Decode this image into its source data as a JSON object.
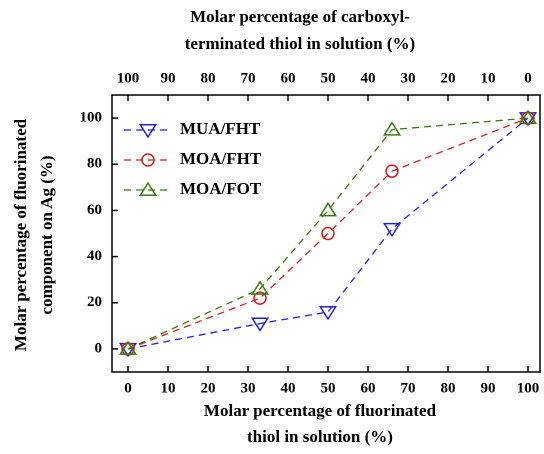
{
  "chart_data": {
    "type": "line",
    "x2label": [
      "Molar percentage of carboxyl-",
      "terminated thiol in solution (%)"
    ],
    "xlabel": [
      "Molar percentage of fluorinated",
      "thiol  in solution (%)"
    ],
    "ylabel": [
      "Molar percentage of fluorinated",
      "component on Ag (%)"
    ],
    "x": [
      0,
      33,
      50,
      66,
      100
    ],
    "series": [
      {
        "name": "MUA/FHT",
        "color": "#2020e0",
        "marker": "triangle-down",
        "values": [
          0,
          11,
          16,
          52,
          100
        ]
      },
      {
        "name": "MOA/FHT",
        "color": "#d02020",
        "marker": "circle",
        "values": [
          0,
          22,
          50,
          77,
          100
        ]
      },
      {
        "name": "MOA/FOT",
        "color": "#3a7a10",
        "marker": "triangle-up",
        "values": [
          0,
          26,
          60,
          95,
          100
        ]
      }
    ],
    "xlim": [
      -4,
      103
    ],
    "xticks": [
      0,
      10,
      20,
      30,
      40,
      50,
      60,
      70,
      80,
      90,
      100
    ],
    "x2lim": [
      104,
      -3
    ],
    "x2ticks": [
      100,
      90,
      80,
      70,
      60,
      50,
      40,
      30,
      20,
      10,
      0
    ],
    "ylim": [
      -10,
      110
    ],
    "yticks": [
      0,
      20,
      40,
      60,
      80,
      100
    ],
    "legend": "upper-left",
    "grid": false
  }
}
